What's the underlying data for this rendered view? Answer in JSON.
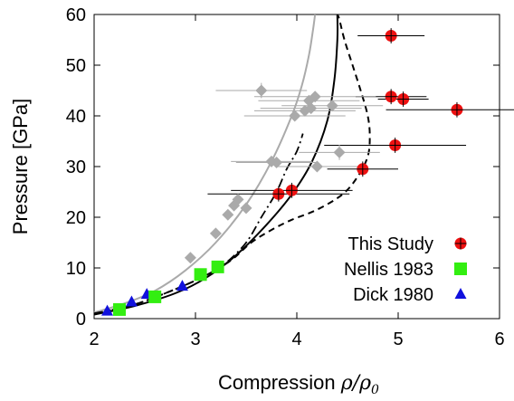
{
  "chart_data": {
    "type": "scatter",
    "title": "",
    "xlabel_prefix": "Compression ",
    "xlabel_math": "ρ/ρ",
    "xlabel_sub": "0",
    "ylabel": "Pressure [GPa]",
    "xlim": [
      2,
      6
    ],
    "ylim": [
      0,
      60
    ],
    "xticks": [
      "2",
      "3",
      "4",
      "5",
      "6"
    ],
    "yticks": [
      "0",
      "10",
      "20",
      "30",
      "40",
      "50",
      "60"
    ],
    "grid": false,
    "legend_position": "bottom-right",
    "colors": {
      "this_study": "#ee1111",
      "nellis": "#33ee11",
      "dick": "#1111dd",
      "gray_data": "#aaaaaa",
      "axis": "#000000"
    },
    "series": [
      {
        "name": "This Study",
        "marker": "circle",
        "points": [
          {
            "x": 3.82,
            "y": 24.6,
            "xerr": 0.7,
            "yerr": 1.5
          },
          {
            "x": 3.95,
            "y": 25.3,
            "xerr": 0.6,
            "yerr": 1.5
          },
          {
            "x": 4.65,
            "y": 29.5,
            "xerr": 0.35,
            "yerr": 1.5
          },
          {
            "x": 4.97,
            "y": 34.2,
            "xerr": 0.7,
            "yerr": 1.5
          },
          {
            "x": 4.93,
            "y": 43.8,
            "xerr": 0.35,
            "yerr": 1.5
          },
          {
            "x": 5.05,
            "y": 43.3,
            "xerr": 0.25,
            "yerr": 1.5
          },
          {
            "x": 5.58,
            "y": 41.2,
            "xerr": 0.7,
            "yerr": 1.5
          },
          {
            "x": 4.93,
            "y": 55.8,
            "xerr": 0.33,
            "yerr": 1.5
          }
        ]
      },
      {
        "name": "Nellis 1983",
        "marker": "square",
        "points": [
          {
            "x": 2.25,
            "y": 1.8
          },
          {
            "x": 2.6,
            "y": 4.3
          },
          {
            "x": 3.05,
            "y": 8.7
          },
          {
            "x": 3.22,
            "y": 10.2
          }
        ]
      },
      {
        "name": "Dick 1980",
        "marker": "triangle",
        "points": [
          {
            "x": 2.13,
            "y": 1.5
          },
          {
            "x": 2.37,
            "y": 3.3
          },
          {
            "x": 2.52,
            "y": 4.8
          },
          {
            "x": 2.87,
            "y": 6.4
          }
        ]
      },
      {
        "name": "",
        "marker": "diamond",
        "points": [
          {
            "x": 2.95,
            "y": 12.0
          },
          {
            "x": 3.2,
            "y": 16.8
          },
          {
            "x": 3.32,
            "y": 20.5
          },
          {
            "x": 3.38,
            "y": 22.3
          },
          {
            "x": 3.42,
            "y": 23.5
          },
          {
            "x": 3.5,
            "y": 21.8
          },
          {
            "x": 3.65,
            "y": 45.0,
            "xerr": 0.45,
            "yerr": 1.5
          },
          {
            "x": 3.75,
            "y": 31.0,
            "xerr": 0.4
          },
          {
            "x": 3.8,
            "y": 30.8,
            "xerr": 0.4
          },
          {
            "x": 3.98,
            "y": 40.0,
            "xerr": 0.5
          },
          {
            "x": 4.08,
            "y": 41.0,
            "xerr": 0.5
          },
          {
            "x": 4.12,
            "y": 43.0,
            "xerr": 0.5
          },
          {
            "x": 4.14,
            "y": 41.5,
            "xerr": 0.5
          },
          {
            "x": 4.18,
            "y": 43.8,
            "xerr": 0.6
          },
          {
            "x": 4.2,
            "y": 30.0,
            "xerr": 0.4
          },
          {
            "x": 4.35,
            "y": 42.0,
            "xerr": 0.5
          },
          {
            "x": 4.42,
            "y": 32.8,
            "xerr": 0.4,
            "yerr": 1.5
          }
        ]
      }
    ],
    "curves": [
      {
        "style": "solid-gray",
        "points": [
          [
            2.0,
            1.2
          ],
          [
            2.3,
            3.0
          ],
          [
            2.6,
            5.5
          ],
          [
            2.9,
            9.5
          ],
          [
            3.2,
            15.0
          ],
          [
            3.5,
            22.5
          ],
          [
            3.75,
            31.0
          ],
          [
            3.95,
            40.0
          ],
          [
            4.05,
            46.0
          ],
          [
            4.12,
            52.0
          ],
          [
            4.16,
            57.0
          ],
          [
            4.18,
            60.0
          ]
        ]
      },
      {
        "style": "solid-black",
        "points": [
          [
            2.0,
            0.8
          ],
          [
            2.4,
            2.5
          ],
          [
            2.8,
            5.0
          ],
          [
            3.1,
            8.0
          ],
          [
            3.4,
            12.5
          ],
          [
            3.7,
            18.5
          ],
          [
            3.95,
            24.5
          ],
          [
            4.15,
            31.0
          ],
          [
            4.3,
            39.0
          ],
          [
            4.37,
            47.0
          ],
          [
            4.4,
            55.0
          ],
          [
            4.4,
            60.0
          ]
        ]
      },
      {
        "style": "dash-dot-black",
        "points": [
          [
            2.0,
            1.0
          ],
          [
            2.4,
            2.8
          ],
          [
            2.8,
            5.8
          ],
          [
            3.1,
            8.5
          ],
          [
            3.3,
            11.0
          ],
          [
            3.5,
            15.0
          ],
          [
            3.65,
            20.0
          ],
          [
            3.8,
            25.0
          ],
          [
            3.9,
            29.5
          ],
          [
            4.0,
            33.0
          ],
          [
            4.06,
            36.5
          ]
        ]
      },
      {
        "style": "dashed-black",
        "points": [
          [
            2.0,
            1.0
          ],
          [
            2.4,
            2.8
          ],
          [
            2.8,
            5.8
          ],
          [
            3.1,
            8.5
          ],
          [
            3.35,
            11.5
          ],
          [
            3.55,
            15.0
          ],
          [
            3.75,
            17.5
          ],
          [
            3.95,
            19.5
          ],
          [
            4.2,
            21.5
          ],
          [
            4.45,
            24.5
          ],
          [
            4.6,
            28.0
          ],
          [
            4.7,
            32.0
          ],
          [
            4.72,
            36.0
          ],
          [
            4.7,
            40.0
          ],
          [
            4.63,
            45.0
          ],
          [
            4.55,
            50.0
          ],
          [
            4.47,
            55.0
          ],
          [
            4.42,
            59.0
          ],
          [
            4.4,
            60.0
          ]
        ]
      }
    ],
    "legend": [
      {
        "label": "This Study",
        "marker": "circle"
      },
      {
        "label": "Nellis 1983",
        "marker": "square"
      },
      {
        "label": "Dick 1980",
        "marker": "triangle"
      }
    ]
  }
}
